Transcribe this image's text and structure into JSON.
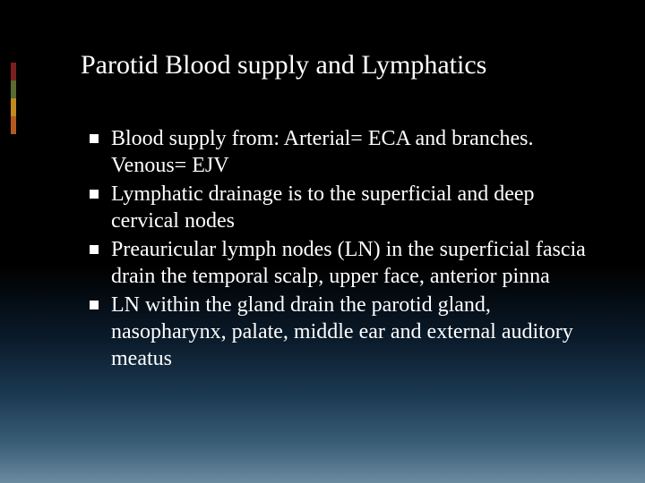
{
  "slide": {
    "title": "Parotid Blood supply and Lymphatics",
    "bullets": [
      "Blood supply from: Arterial= ECA and branches. Venous= EJV",
      "Lymphatic drainage is to the superficial and deep cervical nodes",
      "Preauricular lymph nodes (LN) in the superficial fascia drain the temporal scalp, upper face, anterior pinna",
      "LN within the gland drain the parotid gland, nasopharynx, palate, middle ear and external auditory meatus"
    ],
    "accent_colors": [
      "#7a1f1f",
      "#5a6b2f",
      "#c28a1f",
      "#b55a1f"
    ],
    "accent_heights": [
      20,
      20,
      20,
      20
    ],
    "title_fontsize": 30,
    "body_fontsize": 24,
    "text_color": "#ffffff",
    "bullet_marker_color": "#ffffff",
    "background_gradient": [
      "#000000",
      "#000000",
      "#0a1a2a",
      "#1c3a52",
      "#3a5f78",
      "#6a8aa0"
    ]
  }
}
